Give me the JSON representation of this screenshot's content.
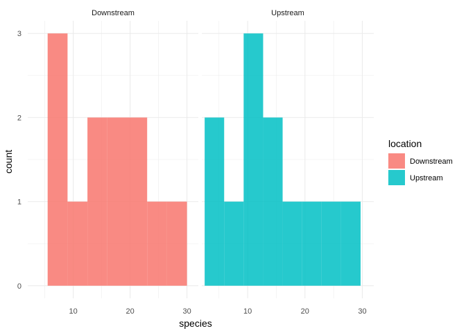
{
  "chart_data": {
    "type": "histogram",
    "xlabel": "species",
    "ylabel": "count",
    "xlim": [
      2,
      32
    ],
    "ylim": [
      -0.15,
      3.15
    ],
    "x_ticks": [
      10,
      20,
      30
    ],
    "x_minor_ticks": [
      5,
      15,
      25
    ],
    "y_ticks": [
      0,
      1,
      2,
      3
    ],
    "y_minor_ticks": [
      0.5,
      1.5,
      2.5
    ],
    "grid": true,
    "legend": {
      "title": "location",
      "placement": "right",
      "entries": [
        {
          "label": "Downstream",
          "color": "#F8766D"
        },
        {
          "label": "Upstream",
          "color": "#00BFC4"
        }
      ]
    },
    "facets": [
      {
        "label": "Downstream",
        "color": "#F8766D",
        "bins": [
          {
            "x0": 5.5,
            "x1": 9.0,
            "count": 3
          },
          {
            "x0": 9.0,
            "x1": 12.5,
            "count": 1
          },
          {
            "x0": 12.5,
            "x1": 16.0,
            "count": 2
          },
          {
            "x0": 16.0,
            "x1": 19.5,
            "count": 2
          },
          {
            "x0": 19.5,
            "x1": 23.0,
            "count": 2
          },
          {
            "x0": 23.0,
            "x1": 26.5,
            "count": 1
          },
          {
            "x0": 26.5,
            "x1": 30.0,
            "count": 1
          }
        ]
      },
      {
        "label": "Upstream",
        "color": "#00BFC4",
        "bins": [
          {
            "x0": 2.5,
            "x1": 5.9,
            "count": 2
          },
          {
            "x0": 5.9,
            "x1": 9.3,
            "count": 1
          },
          {
            "x0": 9.3,
            "x1": 12.7,
            "count": 3
          },
          {
            "x0": 12.7,
            "x1": 16.1,
            "count": 2
          },
          {
            "x0": 16.1,
            "x1": 19.5,
            "count": 1
          },
          {
            "x0": 19.5,
            "x1": 22.9,
            "count": 1
          },
          {
            "x0": 22.9,
            "x1": 26.3,
            "count": 1
          },
          {
            "x0": 26.3,
            "x1": 29.7,
            "count": 1
          }
        ]
      }
    ]
  }
}
